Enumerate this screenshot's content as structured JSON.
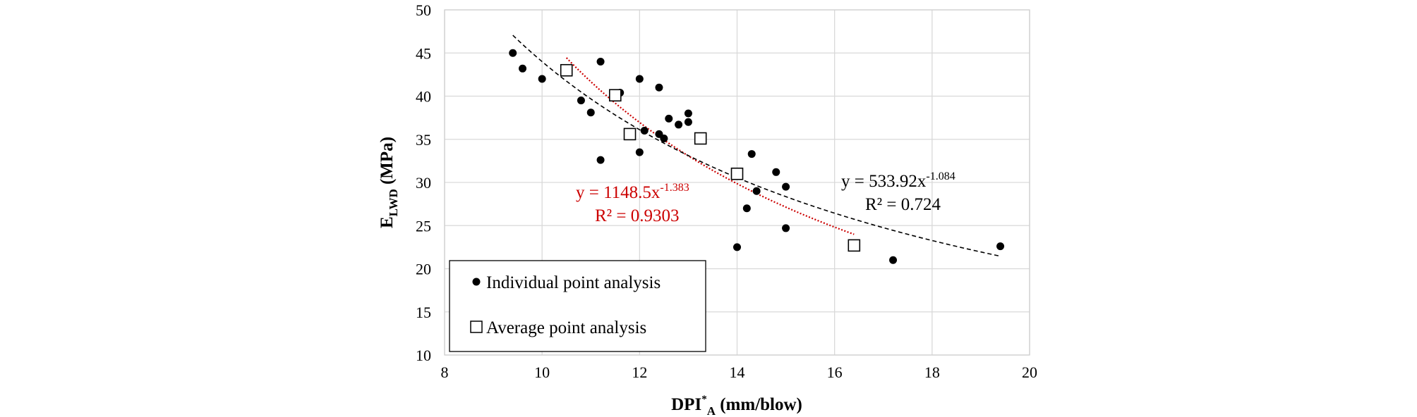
{
  "chart_data": {
    "type": "scatter",
    "xlabel": "DPI",
    "xlabel_sup": "*",
    "xlabel_sub": "A",
    "xlabel_unit": " (mm/blow)",
    "ylabel": "E",
    "ylabel_sub": "LWD",
    "ylabel_unit": " (MPa)",
    "xlim": [
      8,
      20
    ],
    "ylim": [
      10,
      50
    ],
    "x_ticks": [
      8,
      10,
      12,
      14,
      16,
      18,
      20
    ],
    "y_ticks": [
      10,
      15,
      20,
      25,
      30,
      35,
      40,
      45,
      50
    ],
    "grid": true,
    "legend_position": "bottom-left",
    "series": [
      {
        "name": "Individual point analysis",
        "marker": "filled-circle",
        "color": "#000000",
        "points": [
          [
            9.4,
            45.0
          ],
          [
            9.6,
            43.2
          ],
          [
            10.0,
            42.0
          ],
          [
            10.8,
            39.5
          ],
          [
            11.0,
            38.1
          ],
          [
            11.2,
            44.0
          ],
          [
            11.2,
            32.6
          ],
          [
            11.6,
            40.4
          ],
          [
            12.0,
            42.0
          ],
          [
            12.0,
            33.5
          ],
          [
            12.1,
            36.0
          ],
          [
            12.4,
            41.0
          ],
          [
            12.4,
            35.6
          ],
          [
            12.5,
            35.1
          ],
          [
            12.6,
            37.4
          ],
          [
            12.8,
            36.7
          ],
          [
            13.0,
            38.0
          ],
          [
            13.0,
            37.0
          ],
          [
            14.0,
            22.5
          ],
          [
            14.2,
            27.0
          ],
          [
            14.3,
            33.3
          ],
          [
            14.4,
            29.0
          ],
          [
            14.8,
            31.2
          ],
          [
            15.0,
            29.5
          ],
          [
            15.0,
            24.7
          ],
          [
            17.2,
            21.0
          ],
          [
            19.4,
            22.6
          ]
        ]
      },
      {
        "name": "Average point analysis",
        "marker": "open-square",
        "color": "#000000",
        "points": [
          [
            10.5,
            43.0
          ],
          [
            11.5,
            40.1
          ],
          [
            11.8,
            35.6
          ],
          [
            13.25,
            35.1
          ],
          [
            14.0,
            31.0
          ],
          [
            16.4,
            22.7
          ]
        ]
      }
    ],
    "trendlines": [
      {
        "of_series": "Average point analysis",
        "model": "power",
        "a": 1148.5,
        "b": -1.383,
        "x_range": [
          10.5,
          16.4
        ],
        "color": "#cc0000",
        "style": "dotted",
        "equation_prefix": "y = 1148.5x",
        "equation_exp": "-1.383",
        "r2_label": "R² = 0.9303"
      },
      {
        "of_series": "Individual point analysis",
        "model": "power",
        "a": 533.92,
        "b": -1.084,
        "x_range": [
          9.4,
          19.4
        ],
        "color": "#000000",
        "style": "dashed",
        "equation_prefix": "y = 533.92x",
        "equation_exp": "-1.084",
        "r2_label": "R² = 0.724"
      }
    ]
  }
}
